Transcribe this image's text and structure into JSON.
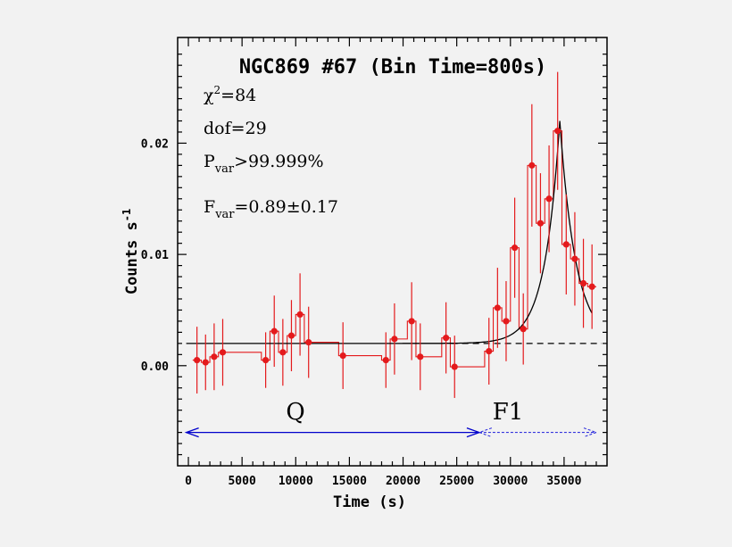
{
  "chart_data": {
    "type": "scatter",
    "title": "NGC869 #67 (Bin Time=800s)",
    "xlabel": "Time (s)",
    "ylabel": "Counts s",
    "ylabel_sup": "-1",
    "xlim": [
      -1000,
      39000
    ],
    "ylim": [
      -0.009,
      0.0295
    ],
    "x_ticks": [
      0,
      5000,
      10000,
      15000,
      20000,
      25000,
      30000,
      35000
    ],
    "y_ticks": [
      0.0,
      0.01,
      0.02
    ],
    "y_tick_labels": [
      "0.00",
      "0.01",
      "0.02"
    ],
    "stats": {
      "chi2_sym": "χ",
      "chi2_sup": "2",
      "chi2_val": "=84",
      "dof": "dof=29",
      "pvar_main": "P",
      "pvar_sub": "var",
      "pvar_val": ">99.999%",
      "fvar_main": "F",
      "fvar_sub": "var",
      "fvar_val": "=0.89±0.17"
    },
    "series": [
      {
        "type": "errorbar",
        "color": "#e41a1c",
        "points": [
          {
            "x": 800,
            "y": 0.0005,
            "err": 0.003
          },
          {
            "x": 1600,
            "y": 0.0003,
            "err": 0.0025
          },
          {
            "x": 2400,
            "y": 0.0008,
            "err": 0.003
          },
          {
            "x": 3200,
            "y": 0.0012,
            "err": 0.003
          },
          {
            "x": 7200,
            "y": 0.0005,
            "err": 0.0025
          },
          {
            "x": 8000,
            "y": 0.0031,
            "err": 0.0032
          },
          {
            "x": 8800,
            "y": 0.0012,
            "err": 0.003
          },
          {
            "x": 9600,
            "y": 0.0027,
            "err": 0.0032
          },
          {
            "x": 10400,
            "y": 0.0046,
            "err": 0.0037
          },
          {
            "x": 11200,
            "y": 0.0021,
            "err": 0.0032
          },
          {
            "x": 14400,
            "y": 0.0009,
            "err": 0.003
          },
          {
            "x": 18400,
            "y": 0.0005,
            "err": 0.0025
          },
          {
            "x": 19200,
            "y": 0.0024,
            "err": 0.0032
          },
          {
            "x": 20800,
            "y": 0.004,
            "err": 0.0035
          },
          {
            "x": 21600,
            "y": 0.0008,
            "err": 0.003
          },
          {
            "x": 24000,
            "y": 0.0025,
            "err": 0.0032
          },
          {
            "x": 24800,
            "y": -0.0001,
            "err": 0.0028
          },
          {
            "x": 28000,
            "y": 0.0013,
            "err": 0.003
          },
          {
            "x": 28800,
            "y": 0.0052,
            "err": 0.0036
          },
          {
            "x": 29600,
            "y": 0.004,
            "err": 0.0036
          },
          {
            "x": 30400,
            "y": 0.0106,
            "err": 0.0045
          },
          {
            "x": 31200,
            "y": 0.0033,
            "err": 0.0032
          },
          {
            "x": 32000,
            "y": 0.018,
            "err": 0.0055
          },
          {
            "x": 32800,
            "y": 0.0128,
            "err": 0.0045
          },
          {
            "x": 33600,
            "y": 0.015,
            "err": 0.0048
          },
          {
            "x": 34400,
            "y": 0.0211,
            "err": 0.0053
          },
          {
            "x": 35200,
            "y": 0.0109,
            "err": 0.0045
          },
          {
            "x": 36000,
            "y": 0.0096,
            "err": 0.0042
          },
          {
            "x": 36800,
            "y": 0.0074,
            "err": 0.004
          },
          {
            "x": 37600,
            "y": 0.0071,
            "err": 0.0038
          }
        ]
      },
      {
        "type": "model",
        "color": "#000000",
        "baseline": 0.002,
        "peak_time": 34600,
        "peak_value": 0.022,
        "rise_time": 1400,
        "decay_time": 1500,
        "x_end": 37600
      },
      {
        "type": "baseline-dashed",
        "color": "#000000",
        "y": 0.002,
        "x_from": 24500,
        "x_to": 38500
      }
    ],
    "annotations": {
      "q_label": "Q",
      "f1_label": "F1",
      "q_range": [
        -200,
        27100
      ],
      "f1_range": [
        27100,
        38000
      ],
      "arrow_y": -0.006,
      "q_color": "#0000cc",
      "f1_color": "#3333dd"
    }
  }
}
